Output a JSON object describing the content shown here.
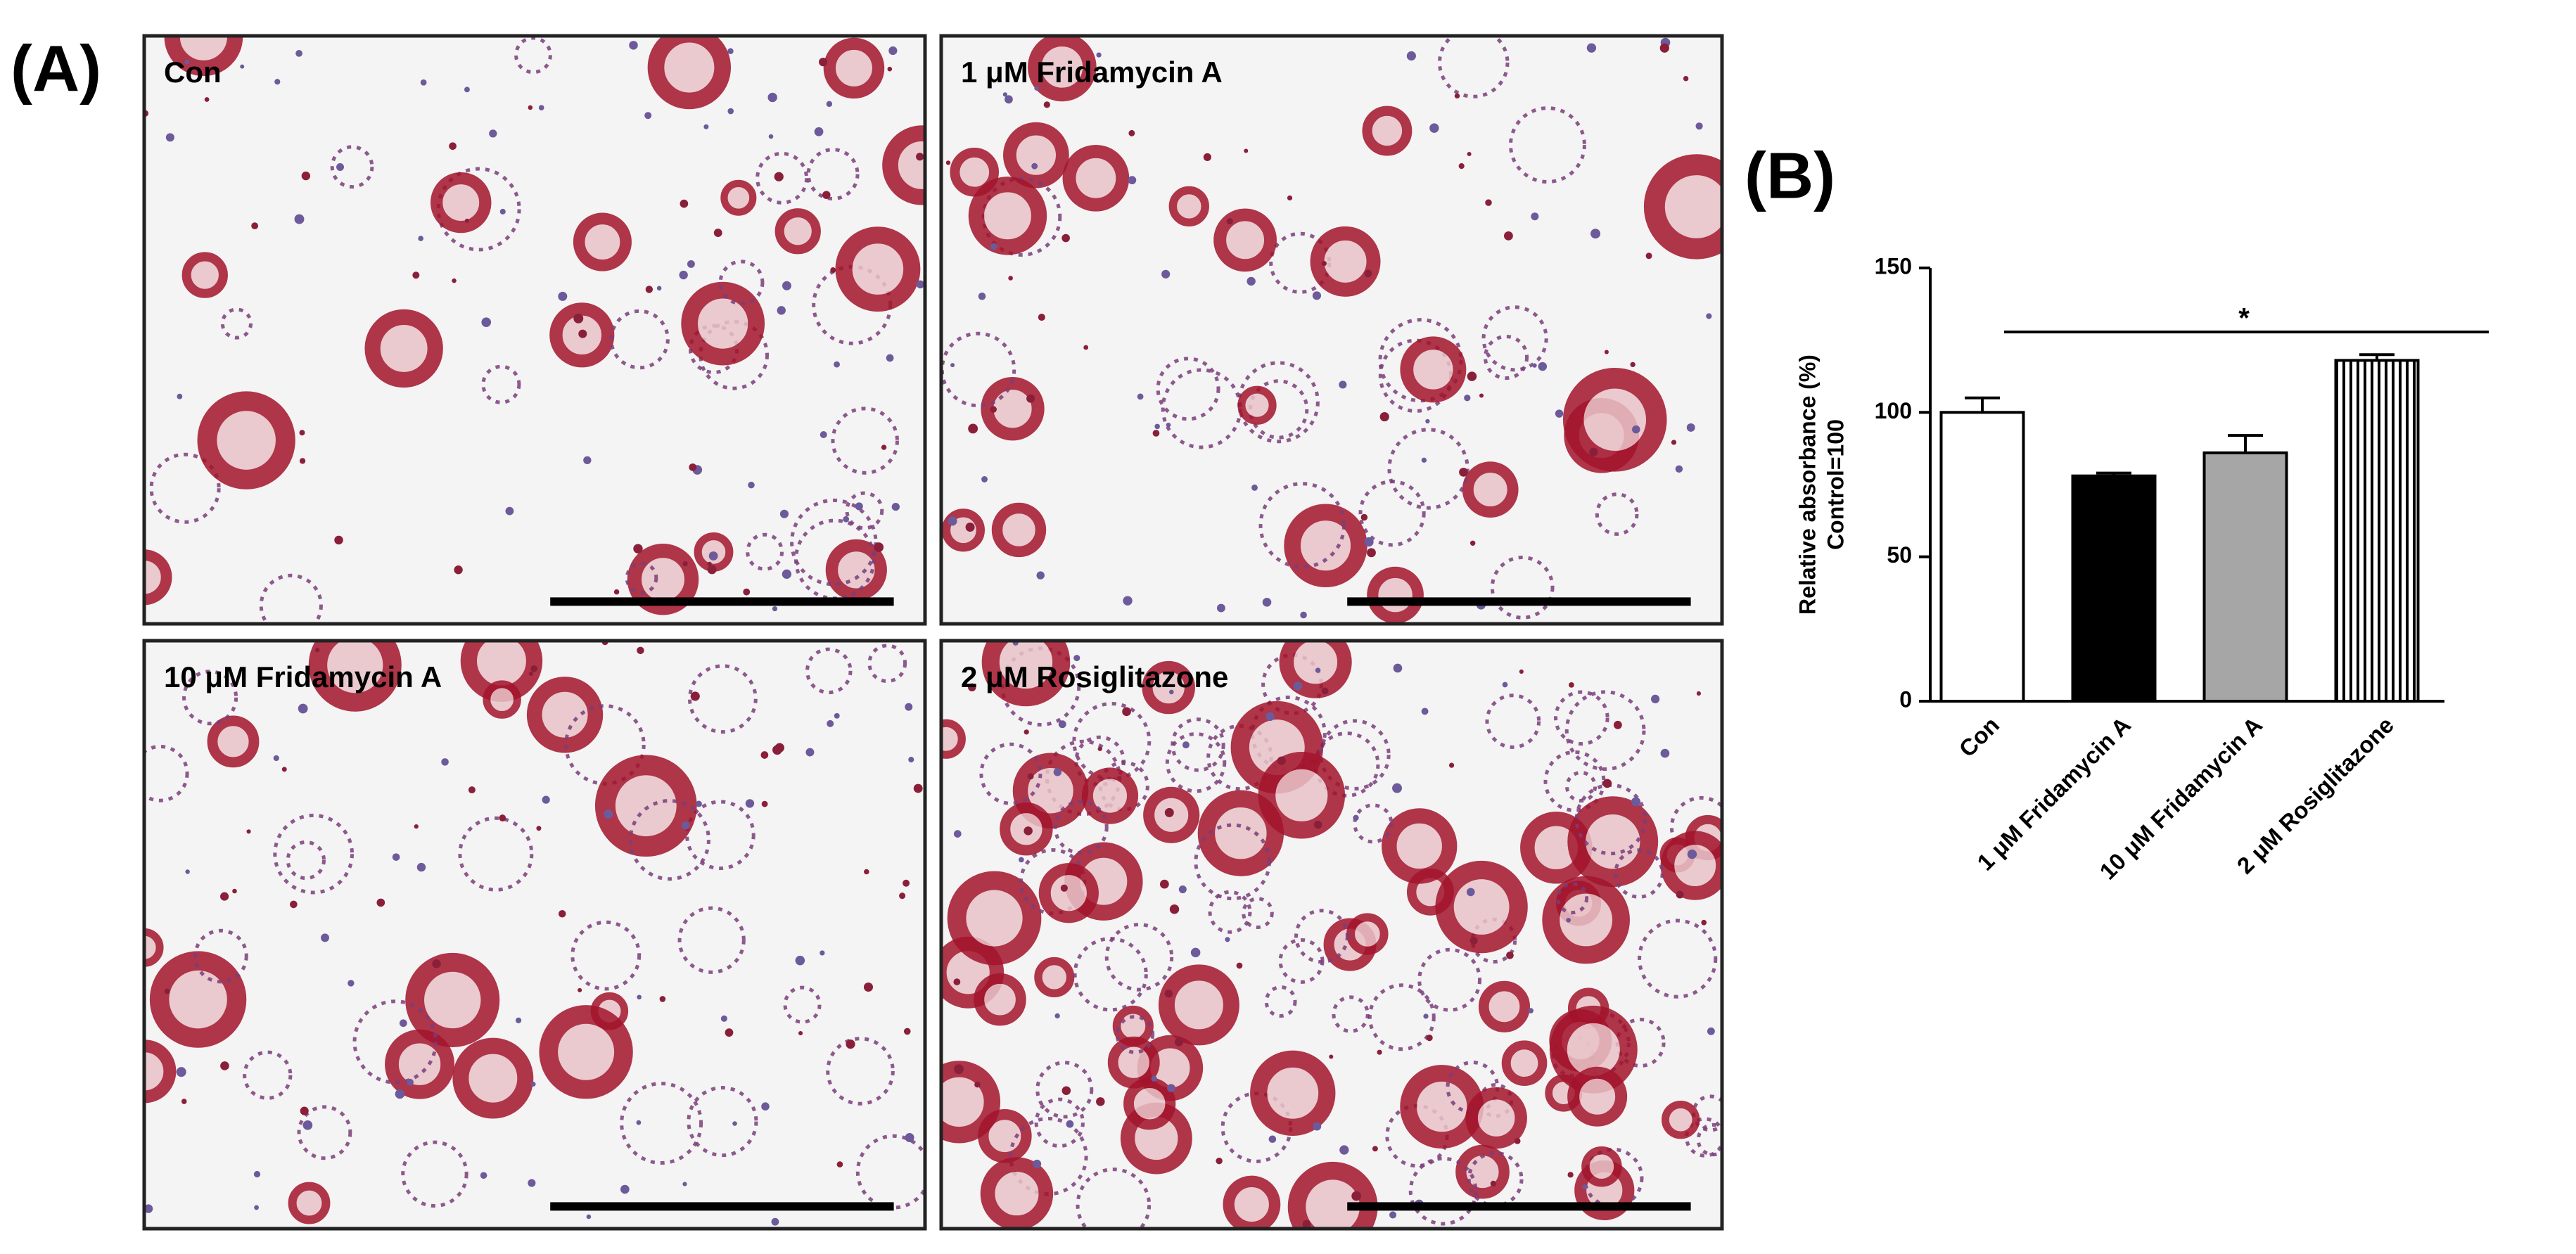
{
  "panel_a": {
    "label": "(A)",
    "images": [
      {
        "label": "Con"
      },
      {
        "label": "1 μM Fridamycin A"
      },
      {
        "label": "10 μM Fridamycin A"
      },
      {
        "label": "2 μM Rosiglitazone"
      }
    ]
  },
  "chart_data": {
    "type": "bar",
    "panel_label": "(B)",
    "ylabel": [
      "Relative absorbance (%)",
      "Control=100"
    ],
    "categories": [
      "Con",
      "1 μM Fridamycin A",
      "10 μM Fridamycin A",
      "2 μM Rosiglitazone"
    ],
    "values": [
      100,
      78,
      86,
      118
    ],
    "errors": [
      5,
      1,
      6,
      2
    ],
    "colors": [
      "#ffffff",
      "#000000",
      "#a6a6a6",
      "#ffffff"
    ],
    "hatches": [
      "none",
      "none",
      "none",
      "vertical"
    ],
    "ylim": [
      0,
      150
    ],
    "yticks": [
      0,
      50,
      100,
      150
    ],
    "annotation": "*"
  }
}
